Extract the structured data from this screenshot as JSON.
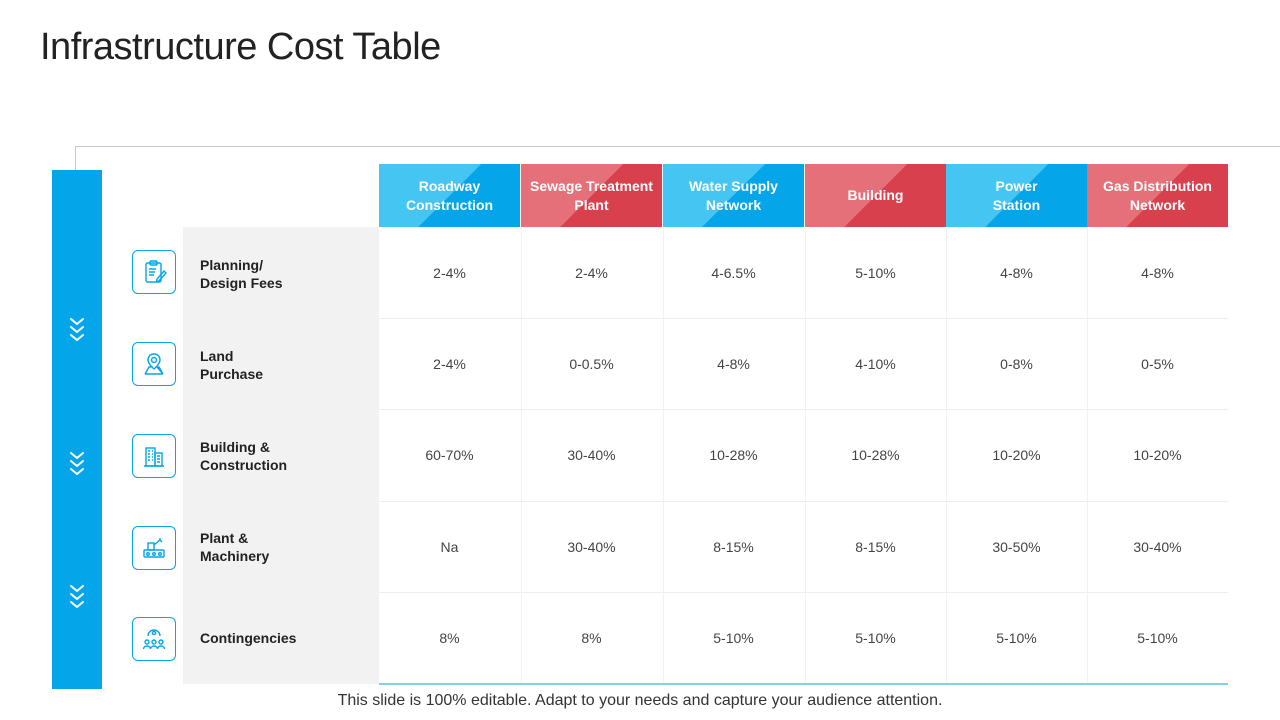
{
  "title": "Infrastructure Cost Table",
  "columns": [
    {
      "label": "Roadway\nConstruction",
      "color": "blue"
    },
    {
      "label": "Sewage Treatment\nPlant",
      "color": "red"
    },
    {
      "label": "Water Supply\nNetwork",
      "color": "blue"
    },
    {
      "label": "Building",
      "color": "red"
    },
    {
      "label": "Power\nStation",
      "color": "blue"
    },
    {
      "label": "Gas Distribution\nNetwork",
      "color": "red"
    }
  ],
  "rows": [
    {
      "label": "Planning/\nDesign Fees",
      "icon": "clipboard-icon",
      "values": [
        "2-4%",
        "2-4%",
        "4-6.5%",
        "5-10%",
        "4-8%",
        "4-8%"
      ]
    },
    {
      "label": "Land\nPurchase",
      "icon": "map-pin-icon",
      "values": [
        "2-4%",
        "0-0.5%",
        "4-8%",
        "4-10%",
        "0-8%",
        "0-5%"
      ]
    },
    {
      "label": "Building &\nConstruction",
      "icon": "building-icon",
      "values": [
        "60-70%",
        "30-40%",
        "10-28%",
        "10-28%",
        "10-20%",
        "10-20%"
      ]
    },
    {
      "label": "Plant &\nMachinery",
      "icon": "machinery-icon",
      "values": [
        "Na",
        "30-40%",
        "8-15%",
        "8-15%",
        "30-50%",
        "30-40%"
      ]
    },
    {
      "label": "Contingencies",
      "icon": "team-icon",
      "values": [
        "8%",
        "8%",
        "5-10%",
        "5-10%",
        "5-10%",
        "5-10%"
      ]
    }
  ],
  "colors": {
    "accent_blue": "#04a6e9",
    "light_blue": "#45c6f2",
    "accent_red": "#d9404e",
    "light_red": "#e5707a"
  },
  "footer": "This slide is 100% editable. Adapt to your needs and capture your audience attention."
}
